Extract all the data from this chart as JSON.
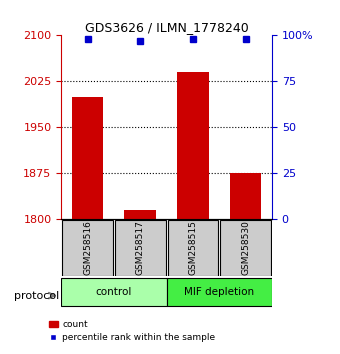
{
  "title": "GDS3626 / ILMN_1778240",
  "samples": [
    "GSM258516",
    "GSM258517",
    "GSM258515",
    "GSM258530"
  ],
  "bar_values": [
    2000,
    1815,
    2040,
    1875
  ],
  "percentile_values": [
    98,
    97,
    98,
    98
  ],
  "bar_color": "#cc0000",
  "percentile_color": "#0000cc",
  "ylim_left": [
    1800,
    2100
  ],
  "ylim_right": [
    0,
    100
  ],
  "yticks_left": [
    1800,
    1875,
    1950,
    2025,
    2100
  ],
  "yticks_right": [
    0,
    25,
    50,
    75,
    100
  ],
  "ytick_labels_right": [
    "0",
    "25",
    "50",
    "75",
    "100%"
  ],
  "grid_values": [
    2025,
    1950,
    1875
  ],
  "groups": [
    {
      "label": "control",
      "samples": [
        "GSM258516",
        "GSM258517"
      ],
      "color": "#aaffaa"
    },
    {
      "label": "MIF depletion",
      "samples": [
        "GSM258515",
        "GSM258530"
      ],
      "color": "#44ee44"
    }
  ],
  "protocol_label": "protocol",
  "legend_count_label": "count",
  "legend_percentile_label": "percentile rank within the sample",
  "bar_width": 0.6,
  "xlabel_color": "#000000",
  "left_axis_color": "#cc0000",
  "right_axis_color": "#0000cc"
}
